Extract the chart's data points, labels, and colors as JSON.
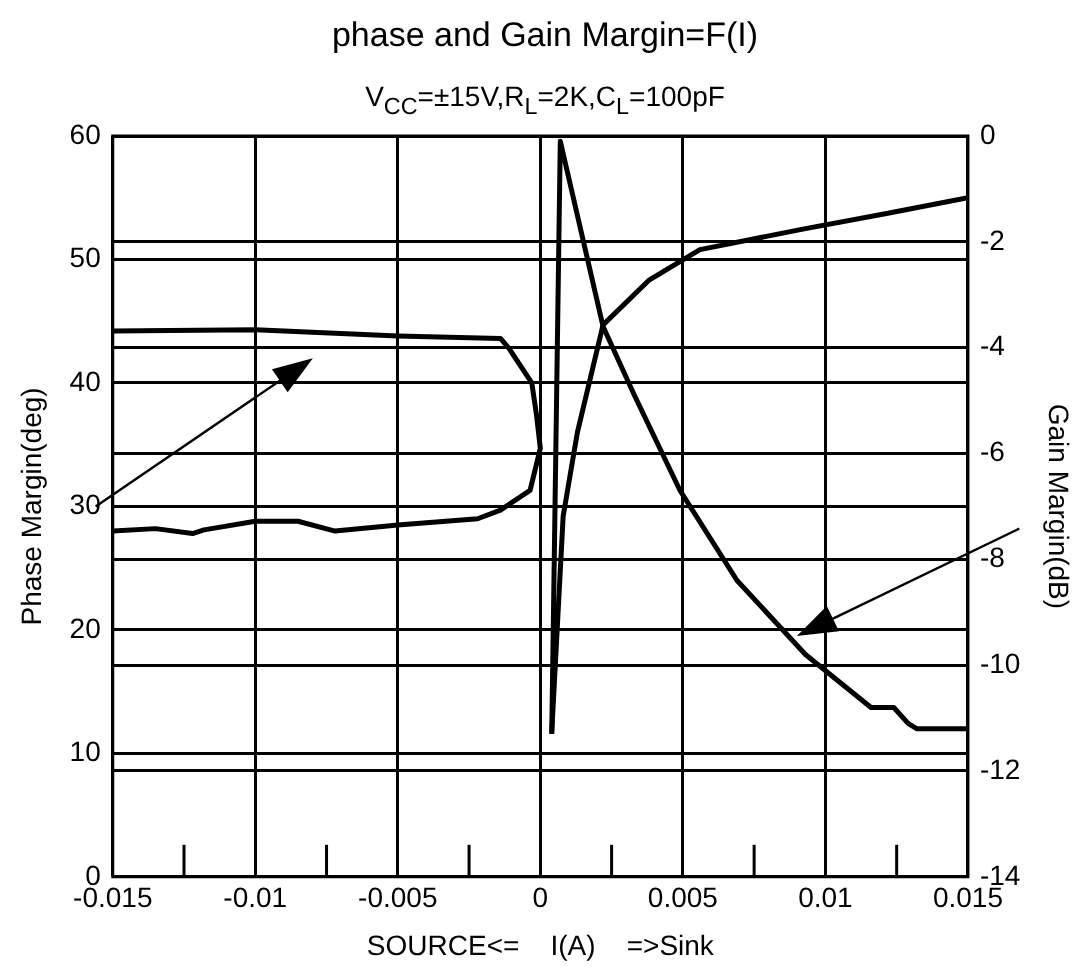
{
  "chart_data": {
    "type": "line",
    "title": "phase and Gain Margin=F(I)",
    "subtitle": "V$_{CC}$=±15V,R$_{L}$=2K,C$_{L}$=100pF",
    "xlabel": "SOURCE<=    I(A)    =>Sink",
    "ylabel": "Phase Margin(deg)",
    "y2label": "Gain Margin(dB)",
    "xlim": [
      -0.015,
      0.015
    ],
    "xticks": [
      -0.015,
      {
        "value": -0.0125,
        "label": null
      },
      -0.01,
      {
        "value": -0.0075,
        "label": null
      },
      -0.005,
      {
        "value": -0.0025,
        "label": null
      },
      0,
      {
        "value": 0.0025,
        "label": null
      },
      0.005,
      {
        "value": 0.0075,
        "label": null
      },
      0.01,
      {
        "value": 0.0125,
        "label": null
      },
      0.015
    ],
    "ylim": [
      0,
      60
    ],
    "yticks": [
      0,
      10,
      20,
      30,
      40,
      50,
      60
    ],
    "y2lim": [
      -14,
      0
    ],
    "y2ticks": [
      -14,
      -12,
      -10,
      -8,
      -6,
      -4,
      -2,
      0
    ],
    "grid": true,
    "legend": false,
    "marker": "none",
    "line_style": "solid",
    "series": [
      {
        "color": "#000000",
        "axis": "y",
        "x": [
          -0.015,
          -0.01,
          -0.005,
          -0.0014,
          -0.0011,
          -0.0003,
          -0.00014,
          0,
          -0.00036,
          -0.0014,
          -0.0022,
          -0.005,
          -0.0072,
          -0.0085,
          -0.01,
          -0.0118,
          -0.0122,
          -0.0135,
          -0.015
        ],
        "values": [
          44.2,
          44.3,
          43.8,
          43.6,
          42.8,
          40,
          37.5,
          34.7,
          31.3,
          29.7,
          29,
          28.5,
          28,
          28.8,
          28.8,
          28.1,
          27.8,
          28.2,
          28
        ]
      },
      {
        "color": "#000000",
        "axis": "y",
        "x": [
          0.0004,
          0.0008,
          0.0013,
          0.0022,
          0.0038,
          0.0056,
          0.0093,
          0.0121,
          0.015
        ],
        "values": [
          11.7,
          29.2,
          36,
          44.7,
          48.3,
          50.8,
          52.5,
          53.7,
          55
        ]
      },
      {
        "color": "#000000",
        "axis": "y2",
        "x": [
          0.0004,
          0.0007,
          0.0022,
          0.0033,
          0.0049,
          0.0069,
          0.0093,
          0.0116,
          0.0124,
          0.0129,
          0.0132,
          0.015
        ],
        "values": [
          -11.3,
          -0.1,
          -3.6,
          -4.9,
          -6.7,
          -8.4,
          -9.8,
          -10.8,
          -10.8,
          -11.1,
          -11.2,
          -11.2
        ]
      }
    ]
  }
}
